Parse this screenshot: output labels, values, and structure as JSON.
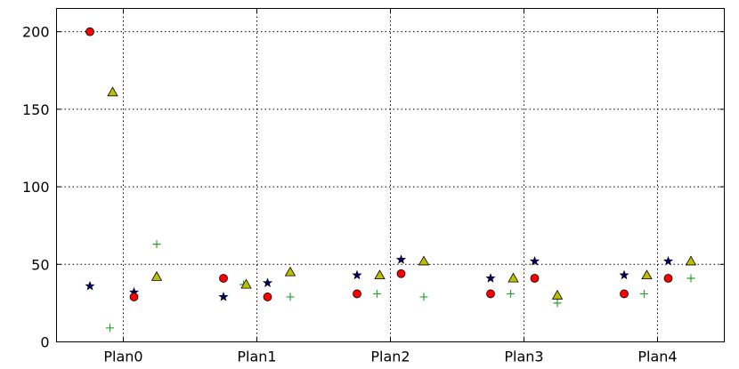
{
  "chart_data": {
    "type": "scatter",
    "categories": [
      "Plan0",
      "Plan1",
      "Plan2",
      "Plan3",
      "Plan4"
    ],
    "ylim": [
      0,
      215
    ],
    "yticks": [
      0,
      50,
      100,
      150,
      200
    ],
    "grid": true,
    "title": "",
    "xlabel": "",
    "ylabel": "",
    "series": [
      {
        "marker": "star",
        "color": "#00006e",
        "offset": -0.25,
        "values": [
          36,
          29,
          43,
          41,
          43
        ]
      },
      {
        "marker": "plus",
        "color": "#2ca02c",
        "offset": -0.1,
        "values": [
          9,
          37,
          31,
          31,
          31
        ]
      },
      {
        "marker": "circle",
        "color": "#ff0000",
        "offset": -0.25,
        "values": [
          200,
          41,
          31,
          31,
          31
        ]
      },
      {
        "marker": "triangle",
        "color": "#bfbf00",
        "offset": -0.08,
        "values": [
          161,
          37,
          43,
          41,
          43
        ]
      },
      {
        "marker": "star",
        "color": "#00006e",
        "offset": 0.08,
        "values": [
          32,
          38,
          53,
          52,
          52
        ]
      },
      {
        "marker": "circle",
        "color": "#ff0000",
        "offset": 0.08,
        "values": [
          29,
          29,
          44,
          41,
          41
        ]
      },
      {
        "marker": "plus",
        "color": "#2ca02c",
        "offset": 0.25,
        "values": [
          63,
          29,
          29,
          25,
          41
        ]
      },
      {
        "marker": "triangle",
        "color": "#bfbf00",
        "offset": 0.25,
        "values": [
          42,
          45,
          52,
          30,
          52
        ]
      }
    ]
  }
}
